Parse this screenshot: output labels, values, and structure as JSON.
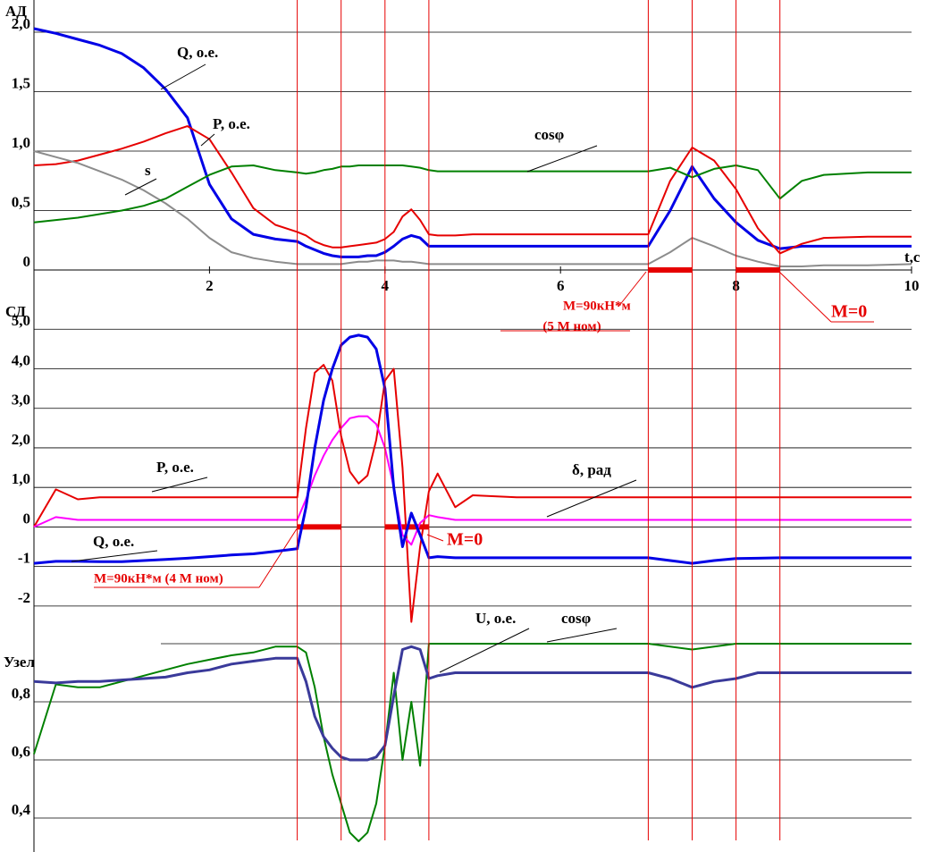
{
  "chart_data": [
    {
      "type": "line",
      "title": "АД",
      "xlabel": "t,c",
      "x": [
        0,
        0.25,
        0.5,
        0.75,
        1,
        1.25,
        1.5,
        1.75,
        2,
        2.25,
        2.5,
        2.75,
        3,
        3.1,
        3.2,
        3.3,
        3.4,
        3.5,
        3.6,
        3.7,
        3.8,
        3.9,
        4,
        4.1,
        4.2,
        4.3,
        4.4,
        4.5,
        4.6,
        4.8,
        5,
        5.5,
        6,
        6.5,
        7,
        7.25,
        7.5,
        7.75,
        8,
        8.25,
        8.5,
        8.75,
        9,
        9.5,
        10
      ],
      "xlim": [
        0,
        10
      ],
      "xticks": [
        2,
        4,
        6,
        8,
        10
      ],
      "ylim": [
        0,
        2.25
      ],
      "yticks": [
        0,
        {
          "value": 0.5,
          "label": "0,5"
        },
        {
          "value": 1,
          "label": "1,0"
        },
        {
          "value": 1.5,
          "label": "1,5"
        },
        {
          "value": 2,
          "label": "2,0"
        }
      ],
      "grid": true,
      "series": [
        {
          "name": "Q, о.е.",
          "color": "#0000e6",
          "values": [
            2.03,
            1.99,
            1.94,
            1.89,
            1.82,
            1.7,
            1.52,
            1.28,
            0.72,
            0.43,
            0.3,
            0.26,
            0.24,
            0.2,
            0.17,
            0.14,
            0.12,
            0.11,
            0.11,
            0.11,
            0.12,
            0.12,
            0.15,
            0.2,
            0.26,
            0.29,
            0.27,
            0.2,
            0.2,
            0.2,
            0.2,
            0.2,
            0.2,
            0.2,
            0.2,
            0.5,
            0.87,
            0.6,
            0.4,
            0.25,
            0.18,
            0.2,
            0.2,
            0.2,
            0.2
          ]
        },
        {
          "name": "P, о.е.",
          "color": "#e60000",
          "values": [
            0.88,
            0.89,
            0.92,
            0.97,
            1.02,
            1.08,
            1.15,
            1.21,
            1.1,
            0.82,
            0.52,
            0.38,
            0.32,
            0.29,
            0.24,
            0.21,
            0.19,
            0.19,
            0.2,
            0.21,
            0.22,
            0.23,
            0.26,
            0.32,
            0.45,
            0.51,
            0.42,
            0.3,
            0.29,
            0.29,
            0.3,
            0.3,
            0.3,
            0.3,
            0.3,
            0.75,
            1.03,
            0.92,
            0.68,
            0.35,
            0.14,
            0.22,
            0.27,
            0.28,
            0.28
          ]
        },
        {
          "name": "s",
          "color": "#8c8c8c",
          "values": [
            1.0,
            0.95,
            0.9,
            0.83,
            0.76,
            0.67,
            0.56,
            0.43,
            0.27,
            0.15,
            0.1,
            0.07,
            0.05,
            0.05,
            0.05,
            0.05,
            0.05,
            0.05,
            0.06,
            0.07,
            0.07,
            0.08,
            0.08,
            0.08,
            0.07,
            0.07,
            0.06,
            0.05,
            0.05,
            0.05,
            0.05,
            0.05,
            0.05,
            0.05,
            0.05,
            0.15,
            0.27,
            0.2,
            0.12,
            0.07,
            0.03,
            0.03,
            0.04,
            0.04,
            0.05
          ]
        },
        {
          "name": "cosφ",
          "color": "#008000",
          "values": [
            0.4,
            0.42,
            0.44,
            0.47,
            0.5,
            0.54,
            0.6,
            0.7,
            0.8,
            0.87,
            0.88,
            0.84,
            0.82,
            0.81,
            0.82,
            0.84,
            0.85,
            0.87,
            0.87,
            0.88,
            0.88,
            0.88,
            0.88,
            0.88,
            0.88,
            0.87,
            0.86,
            0.84,
            0.83,
            0.83,
            0.83,
            0.83,
            0.83,
            0.83,
            0.83,
            0.86,
            0.78,
            0.85,
            0.88,
            0.84,
            0.6,
            0.75,
            0.8,
            0.82,
            0.82
          ]
        }
      ],
      "load_bars": [
        [
          7,
          7.5
        ],
        [
          8,
          8.5
        ]
      ],
      "annotations": [
        "M=90кН*м",
        "(5 М ном)",
        "M=0"
      ]
    },
    {
      "type": "line",
      "title": "СД",
      "x": [
        0,
        0.25,
        0.5,
        0.75,
        1,
        1.25,
        1.5,
        1.75,
        2,
        2.25,
        2.5,
        2.75,
        3,
        3.1,
        3.2,
        3.3,
        3.4,
        3.5,
        3.6,
        3.7,
        3.8,
        3.9,
        4,
        4.1,
        4.2,
        4.3,
        4.4,
        4.5,
        4.6,
        4.8,
        5,
        5.5,
        6,
        6.5,
        7,
        7.25,
        7.5,
        7.75,
        8,
        8.25,
        8.5,
        8.75,
        9,
        9.5,
        10
      ],
      "xlim": [
        0,
        10
      ],
      "ylim": [
        -2.5,
        5.3
      ],
      "yticks": [
        -2,
        -1,
        0,
        {
          "value": 1,
          "label": "1,0"
        },
        {
          "value": 2,
          "label": "2,0"
        },
        {
          "value": 3,
          "label": "3,0"
        },
        {
          "value": 4,
          "label": "4,0"
        },
        {
          "value": 5,
          "label": "5,0"
        }
      ],
      "grid": true,
      "series": [
        {
          "name": "P, о.е.",
          "color": "#e60000",
          "values": [
            0,
            0.95,
            0.7,
            0.75,
            0.75,
            0.75,
            0.75,
            0.75,
            0.75,
            0.75,
            0.75,
            0.75,
            0.75,
            2.5,
            3.9,
            4.1,
            3.7,
            2.3,
            1.4,
            1.1,
            1.3,
            2.2,
            3.7,
            4.0,
            1.5,
            -2.4,
            -0.5,
            0.9,
            1.35,
            0.5,
            0.8,
            0.75,
            0.75,
            0.75,
            0.75,
            0.75,
            0.75,
            0.75,
            0.75,
            0.75,
            0.75,
            0.75,
            0.75,
            0.75,
            0.75
          ]
        },
        {
          "name": "δ, рад",
          "color": "#ff00ff",
          "values": [
            0,
            0.25,
            0.18,
            0.18,
            0.18,
            0.18,
            0.18,
            0.18,
            0.18,
            0.18,
            0.18,
            0.18,
            0.18,
            0.7,
            1.3,
            1.8,
            2.2,
            2.5,
            2.75,
            2.8,
            2.8,
            2.6,
            2.0,
            1.0,
            -0.2,
            -0.45,
            0.1,
            0.3,
            0.25,
            0.18,
            0.18,
            0.18,
            0.18,
            0.18,
            0.18,
            0.18,
            0.18,
            0.18,
            0.18,
            0.18,
            0.18,
            0.18,
            0.18,
            0.18,
            0.18
          ]
        },
        {
          "name": "Q, о.е.",
          "color": "#0000e6",
          "values": [
            -0.92,
            -0.87,
            -0.87,
            -0.88,
            -0.88,
            -0.85,
            -0.82,
            -0.79,
            -0.75,
            -0.71,
            -0.68,
            -0.62,
            -0.55,
            0.5,
            2.0,
            3.2,
            4.0,
            4.6,
            4.8,
            4.85,
            4.8,
            4.5,
            3.5,
            1.0,
            -0.5,
            0.35,
            -0.2,
            -0.78,
            -0.75,
            -0.78,
            -0.78,
            -0.78,
            -0.78,
            -0.78,
            -0.78,
            -0.85,
            -0.92,
            -0.85,
            -0.8,
            -0.79,
            -0.78,
            -0.78,
            -0.78,
            -0.78,
            -0.78
          ]
        }
      ],
      "load_bars": [
        [
          3,
          3.5
        ],
        [
          4,
          4.5
        ]
      ],
      "annotations": [
        "M=90кН*м (4 М ном)",
        "M=0"
      ]
    },
    {
      "type": "line",
      "title": "Узел",
      "x": [
        0,
        0.25,
        0.5,
        0.75,
        1,
        1.25,
        1.5,
        1.75,
        2,
        2.25,
        2.5,
        2.75,
        3,
        3.1,
        3.2,
        3.3,
        3.4,
        3.5,
        3.6,
        3.7,
        3.8,
        3.9,
        4,
        4.1,
        4.2,
        4.3,
        4.4,
        4.5,
        4.6,
        4.8,
        5,
        5.5,
        6,
        6.5,
        7,
        7.25,
        7.5,
        7.75,
        8,
        8.25,
        8.5,
        8.75,
        9,
        9.5,
        10
      ],
      "xlim": [
        0,
        10
      ],
      "ylim": [
        0.3,
        1.0
      ],
      "yticks": [
        {
          "value": 0.4,
          "label": "0,4"
        },
        {
          "value": 0.6,
          "label": "0,6"
        },
        {
          "value": 0.8,
          "label": "0,8"
        }
      ],
      "grid": true,
      "series": [
        {
          "name": "cosφ",
          "color": "#008000",
          "values": [
            0.62,
            0.86,
            0.85,
            0.85,
            0.87,
            0.89,
            0.91,
            0.93,
            0.945,
            0.96,
            0.97,
            0.99,
            0.99,
            0.97,
            0.85,
            0.68,
            0.55,
            0.45,
            0.35,
            0.32,
            0.35,
            0.45,
            0.65,
            0.9,
            0.6,
            0.8,
            0.58,
            1.0,
            1.0,
            1.0,
            1.0,
            1.0,
            1.0,
            1.0,
            1.0,
            0.99,
            0.98,
            0.99,
            1.0,
            1.0,
            1.0,
            1.0,
            1.0,
            1.0,
            1.0
          ]
        },
        {
          "name": "U, о.е.",
          "color": "#3a3a9a",
          "values": [
            0.87,
            0.865,
            0.87,
            0.87,
            0.875,
            0.88,
            0.885,
            0.9,
            0.91,
            0.93,
            0.94,
            0.95,
            0.95,
            0.87,
            0.75,
            0.68,
            0.64,
            0.61,
            0.6,
            0.6,
            0.6,
            0.61,
            0.65,
            0.82,
            0.98,
            0.99,
            0.98,
            0.88,
            0.89,
            0.9,
            0.9,
            0.9,
            0.9,
            0.9,
            0.9,
            0.88,
            0.85,
            0.87,
            0.88,
            0.9,
            0.9,
            0.9,
            0.9,
            0.9,
            0.9
          ]
        }
      ]
    }
  ],
  "event_lines": [
    3,
    3.5,
    4,
    4.5,
    7,
    7.5,
    8,
    8.5
  ]
}
